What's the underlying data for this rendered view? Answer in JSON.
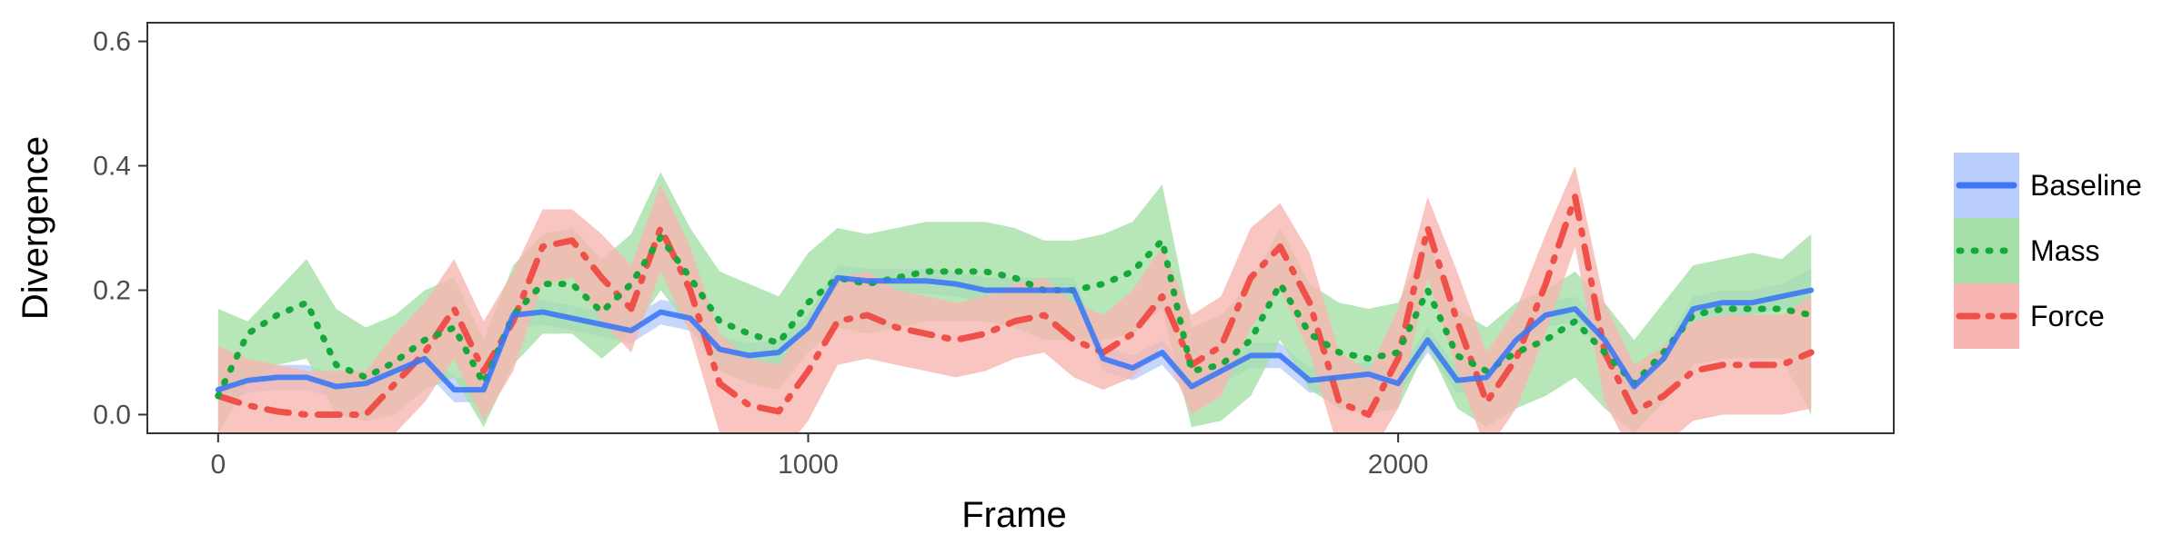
{
  "chart_data": {
    "type": "line",
    "title": "",
    "xlabel": "Frame",
    "ylabel": "Divergence",
    "xlim": [
      -120,
      2840
    ],
    "ylim": [
      -0.03,
      0.63
    ],
    "x_ticks": [
      0,
      1000,
      2000
    ],
    "x_tick_labels": [
      "0",
      "1000",
      "2000"
    ],
    "y_ticks": [
      0.0,
      0.2,
      0.4,
      0.6
    ],
    "y_tick_labels": [
      "0.0",
      "0.2",
      "0.4",
      "0.6"
    ],
    "grid": false,
    "legend_position": "right",
    "x": [
      0,
      50,
      100,
      150,
      200,
      250,
      300,
      350,
      400,
      450,
      500,
      550,
      600,
      650,
      700,
      750,
      800,
      850,
      900,
      950,
      1000,
      1050,
      1100,
      1150,
      1200,
      1250,
      1300,
      1350,
      1400,
      1450,
      1500,
      1550,
      1600,
      1650,
      1700,
      1750,
      1800,
      1850,
      1900,
      1950,
      2000,
      2050,
      2100,
      2150,
      2200,
      2250,
      2300,
      2350,
      2400,
      2450,
      2500,
      2550,
      2600,
      2650,
      2700
    ],
    "series": [
      {
        "name": "Baseline",
        "color": "#3c78f5",
        "fill": "#b9cdfa",
        "line_style": "solid",
        "values": [
          0.04,
          0.055,
          0.06,
          0.06,
          0.045,
          0.05,
          0.07,
          0.09,
          0.04,
          0.04,
          0.16,
          0.165,
          0.155,
          0.145,
          0.135,
          0.165,
          0.155,
          0.105,
          0.095,
          0.1,
          0.14,
          0.22,
          0.215,
          0.215,
          0.215,
          0.21,
          0.2,
          0.2,
          0.2,
          0.2,
          0.09,
          0.075,
          0.1,
          0.045,
          0.07,
          0.095,
          0.095,
          0.055,
          0.06,
          0.065,
          0.05,
          0.12,
          0.055,
          0.06,
          0.12,
          0.16,
          0.17,
          0.12,
          0.045,
          0.09,
          0.17,
          0.18,
          0.18,
          0.19,
          0.2
        ],
        "lower": [
          0.015,
          0.035,
          0.04,
          0.04,
          0.025,
          0.03,
          0.05,
          0.07,
          0.02,
          0.02,
          0.14,
          0.145,
          0.135,
          0.125,
          0.115,
          0.145,
          0.135,
          0.085,
          0.075,
          0.08,
          0.12,
          0.2,
          0.195,
          0.195,
          0.195,
          0.19,
          0.18,
          0.18,
          0.18,
          0.18,
          0.07,
          0.055,
          0.08,
          0.025,
          0.05,
          0.075,
          0.075,
          0.035,
          0.04,
          0.045,
          0.03,
          0.1,
          0.035,
          0.04,
          0.1,
          0.14,
          0.15,
          0.1,
          0.025,
          0.07,
          0.15,
          0.16,
          0.16,
          0.17,
          0.17
        ],
        "upper": [
          0.065,
          0.075,
          0.08,
          0.08,
          0.065,
          0.07,
          0.09,
          0.11,
          0.06,
          0.06,
          0.18,
          0.185,
          0.175,
          0.165,
          0.155,
          0.185,
          0.175,
          0.125,
          0.115,
          0.12,
          0.16,
          0.24,
          0.235,
          0.235,
          0.235,
          0.23,
          0.22,
          0.22,
          0.22,
          0.22,
          0.11,
          0.095,
          0.12,
          0.065,
          0.09,
          0.115,
          0.115,
          0.075,
          0.08,
          0.085,
          0.07,
          0.14,
          0.075,
          0.08,
          0.14,
          0.18,
          0.19,
          0.14,
          0.065,
          0.11,
          0.19,
          0.2,
          0.2,
          0.21,
          0.235
        ]
      },
      {
        "name": "Mass",
        "color": "#16a83a",
        "fill": "#a5e0a8",
        "line_style": "dotted",
        "values": [
          0.03,
          0.13,
          0.16,
          0.18,
          0.08,
          0.06,
          0.085,
          0.12,
          0.14,
          0.05,
          0.16,
          0.21,
          0.21,
          0.165,
          0.21,
          0.285,
          0.22,
          0.15,
          0.13,
          0.115,
          0.18,
          0.22,
          0.21,
          0.22,
          0.23,
          0.23,
          0.23,
          0.22,
          0.2,
          0.2,
          0.21,
          0.23,
          0.28,
          0.07,
          0.08,
          0.12,
          0.21,
          0.13,
          0.1,
          0.09,
          0.1,
          0.2,
          0.095,
          0.07,
          0.1,
          0.12,
          0.15,
          0.1,
          0.05,
          0.1,
          0.16,
          0.17,
          0.17,
          0.17,
          0.16
        ],
        "lower": [
          -0.03,
          0.05,
          0.08,
          0.09,
          0.0,
          -0.01,
          0.0,
          0.04,
          0.06,
          -0.02,
          0.08,
          0.13,
          0.13,
          0.09,
          0.13,
          0.2,
          0.14,
          0.07,
          0.05,
          0.04,
          0.1,
          0.14,
          0.13,
          0.14,
          0.15,
          0.15,
          0.15,
          0.14,
          0.12,
          0.12,
          0.12,
          0.13,
          0.17,
          -0.02,
          -0.01,
          0.03,
          0.12,
          0.04,
          0.01,
          0.0,
          0.01,
          0.11,
          0.01,
          -0.02,
          0.01,
          0.03,
          0.06,
          0.01,
          -0.03,
          0.02,
          0.08,
          0.09,
          0.09,
          0.09,
          0.0
        ],
        "upper": [
          0.17,
          0.15,
          0.2,
          0.25,
          0.17,
          0.14,
          0.16,
          0.2,
          0.22,
          0.12,
          0.24,
          0.29,
          0.3,
          0.25,
          0.29,
          0.39,
          0.3,
          0.23,
          0.21,
          0.19,
          0.26,
          0.3,
          0.29,
          0.3,
          0.31,
          0.31,
          0.31,
          0.3,
          0.28,
          0.28,
          0.29,
          0.31,
          0.37,
          0.14,
          0.16,
          0.21,
          0.3,
          0.21,
          0.18,
          0.17,
          0.18,
          0.28,
          0.17,
          0.14,
          0.18,
          0.2,
          0.23,
          0.18,
          0.12,
          0.18,
          0.24,
          0.25,
          0.26,
          0.25,
          0.29
        ]
      },
      {
        "name": "Force",
        "color": "#f0504a",
        "fill": "#f8b6b2",
        "line_style": "dashdot",
        "values": [
          0.03,
          0.015,
          0.005,
          0.0,
          0.0,
          0.0,
          0.05,
          0.1,
          0.17,
          0.07,
          0.15,
          0.27,
          0.28,
          0.22,
          0.17,
          0.3,
          0.2,
          0.05,
          0.015,
          0.005,
          0.07,
          0.15,
          0.16,
          0.14,
          0.13,
          0.12,
          0.13,
          0.15,
          0.16,
          0.12,
          0.1,
          0.13,
          0.19,
          0.08,
          0.11,
          0.22,
          0.27,
          0.18,
          0.02,
          0.0,
          0.09,
          0.3,
          0.15,
          0.02,
          0.09,
          0.21,
          0.35,
          0.1,
          0.005,
          0.03,
          0.07,
          0.08,
          0.08,
          0.08,
          0.1
        ],
        "lower": [
          -0.05,
          -0.06,
          -0.07,
          -0.07,
          -0.07,
          -0.07,
          -0.03,
          0.02,
          0.09,
          -0.01,
          0.07,
          0.21,
          0.22,
          0.15,
          0.1,
          0.23,
          0.13,
          -0.03,
          -0.06,
          -0.07,
          -0.01,
          0.08,
          0.09,
          0.08,
          0.07,
          0.06,
          0.07,
          0.09,
          0.1,
          0.06,
          0.04,
          0.06,
          0.11,
          0.0,
          0.03,
          0.14,
          0.2,
          0.1,
          -0.06,
          -0.07,
          0.01,
          0.22,
          0.07,
          -0.06,
          0.01,
          0.13,
          0.27,
          0.02,
          -0.07,
          -0.05,
          -0.01,
          0.0,
          0.0,
          0.0,
          0.01
        ],
        "upper": [
          0.11,
          0.09,
          0.08,
          0.07,
          0.07,
          0.07,
          0.13,
          0.18,
          0.25,
          0.15,
          0.23,
          0.33,
          0.33,
          0.29,
          0.24,
          0.37,
          0.27,
          0.13,
          0.09,
          0.08,
          0.15,
          0.22,
          0.23,
          0.2,
          0.19,
          0.18,
          0.19,
          0.21,
          0.22,
          0.18,
          0.16,
          0.2,
          0.27,
          0.16,
          0.19,
          0.3,
          0.34,
          0.26,
          0.1,
          0.07,
          0.17,
          0.35,
          0.23,
          0.1,
          0.17,
          0.29,
          0.4,
          0.18,
          0.08,
          0.11,
          0.15,
          0.16,
          0.16,
          0.16,
          0.19
        ]
      }
    ]
  }
}
